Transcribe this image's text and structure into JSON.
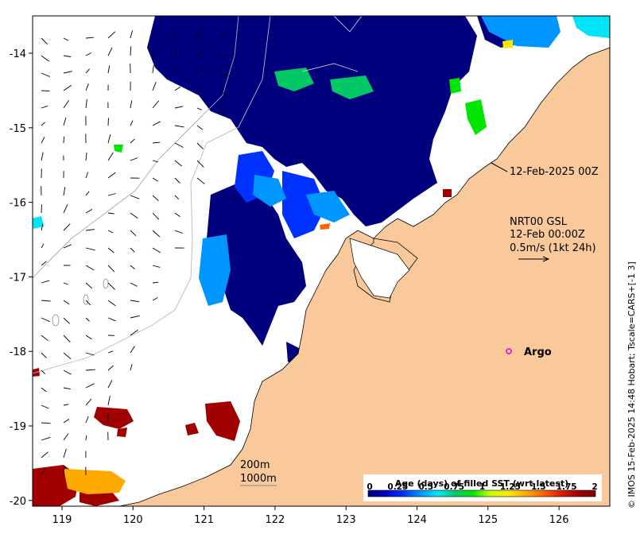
{
  "map": {
    "x_ticks": [
      "119",
      "120",
      "121",
      "122",
      "123",
      "124",
      "125",
      "126"
    ],
    "y_ticks": [
      "-14",
      "-15",
      "-16",
      "-17",
      "-18",
      "-19",
      "-20"
    ],
    "timestamp_label": "12-Feb-2025 00Z",
    "current_lines": [
      "NRT00 GSL",
      "12-Feb 00:00Z",
      "0.5m/s (1kt 24h)"
    ],
    "argo_label": "Argo",
    "contour_labels": [
      "200m",
      "1000m"
    ],
    "credit": "© IMOS 15-Feb-2025 14:48 Hobart; Tscale=CARS+[-1 3]",
    "land_color": "#f9c89b",
    "argo_color": "#e000e0"
  },
  "colorbar": {
    "title": "Age (days) of filled SST (wrt latest)",
    "labels": [
      "0",
      "0.25",
      "0.5",
      "0.75",
      "1",
      "1.25",
      "1.5",
      "1.75",
      "2"
    ],
    "colors": [
      "#00007f",
      "#0000c8",
      "#0032ff",
      "#0096ff",
      "#00e4f8",
      "#00c864",
      "#00e600",
      "#c8ff00",
      "#ffe600",
      "#ffaa00",
      "#ff6400",
      "#e01e00",
      "#a00000",
      "#7f0000"
    ]
  }
}
